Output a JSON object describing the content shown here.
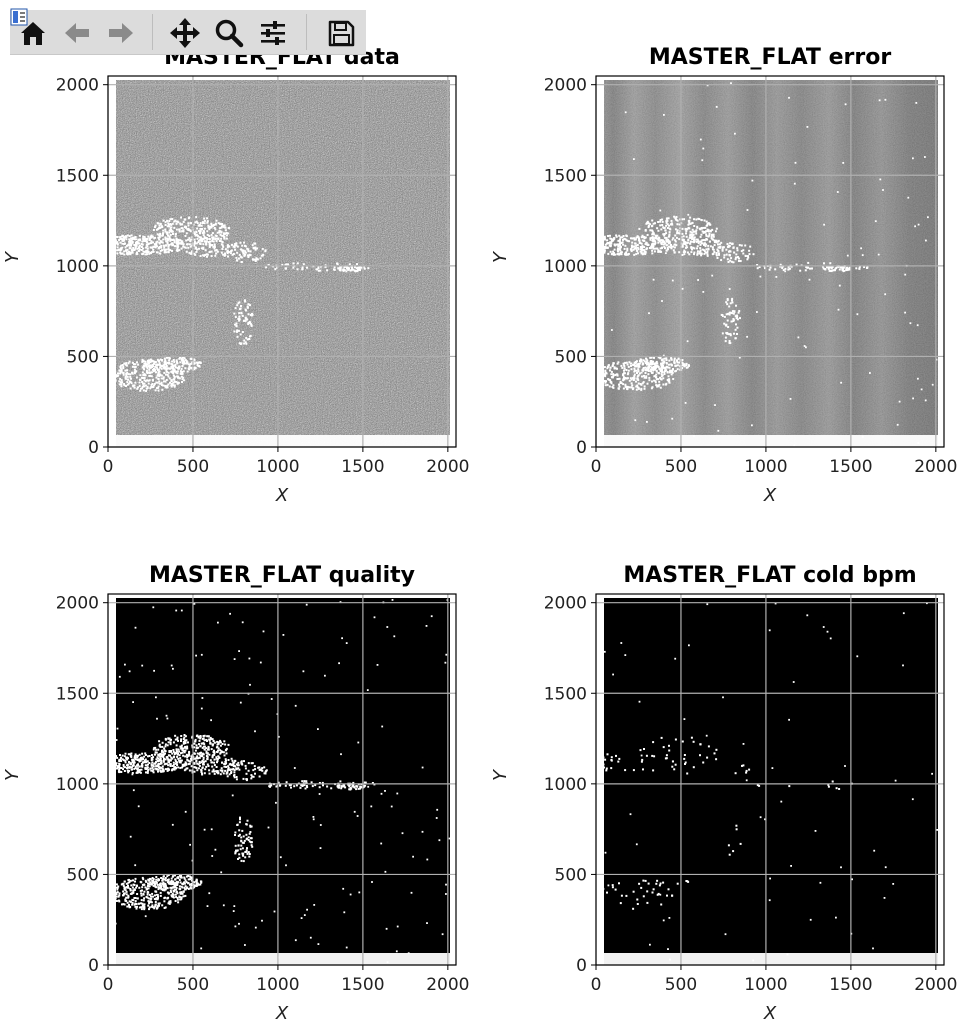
{
  "toolbar": {
    "buttons": [
      {
        "name": "home-button",
        "icon": "home-icon"
      },
      {
        "name": "back-button",
        "icon": "arrow-left-icon"
      },
      {
        "name": "forward-button",
        "icon": "arrow-right-icon"
      },
      {
        "name": "pan-button",
        "icon": "move-arrows-icon"
      },
      {
        "name": "zoom-button",
        "icon": "magnifier-icon"
      },
      {
        "name": "configure-subplots-button",
        "icon": "sliders-icon"
      },
      {
        "name": "save-button",
        "icon": "floppy-disk-icon"
      }
    ]
  },
  "panels": [
    {
      "id": "data",
      "title": "MASTER_FLAT data",
      "xlabel": "X",
      "ylabel": "Y",
      "style": "gray-noise"
    },
    {
      "id": "error",
      "title": "MASTER_FLAT error",
      "xlabel": "X",
      "ylabel": "Y",
      "style": "gray-banded"
    },
    {
      "id": "quality",
      "title": "MASTER_FLAT quality",
      "xlabel": "X",
      "ylabel": "Y",
      "style": "black-mask"
    },
    {
      "id": "cold",
      "title": "MASTER_FLAT cold bpm",
      "xlabel": "X",
      "ylabel": "Y",
      "style": "black-sparse"
    }
  ],
  "axis": {
    "x_ticks": [
      "0",
      "500",
      "1000",
      "1500",
      "2000"
    ],
    "y_ticks": [
      "0",
      "500",
      "1000",
      "1500",
      "2000"
    ]
  },
  "chart_data": [
    {
      "type": "heatmap",
      "title": "MASTER_FLAT data",
      "xlabel": "X",
      "ylabel": "Y",
      "xlim": [
        0,
        2048
      ],
      "ylim": [
        0,
        2048
      ],
      "colormap": "gray",
      "grid": true,
      "x_ticks": [
        0,
        500,
        1000,
        1500,
        2000
      ],
      "y_ticks": [
        0,
        500,
        1000,
        1500,
        2000
      ]
    },
    {
      "type": "heatmap",
      "title": "MASTER_FLAT error",
      "xlabel": "X",
      "ylabel": "Y",
      "xlim": [
        0,
        2048
      ],
      "ylim": [
        0,
        2048
      ],
      "colormap": "gray",
      "grid": true,
      "x_ticks": [
        0,
        500,
        1000,
        1500,
        2000
      ],
      "y_ticks": [
        0,
        500,
        1000,
        1500,
        2000
      ]
    },
    {
      "type": "heatmap",
      "title": "MASTER_FLAT quality",
      "xlabel": "X",
      "ylabel": "Y",
      "xlim": [
        0,
        2048
      ],
      "ylim": [
        0,
        2048
      ],
      "colormap": "gray",
      "grid": true,
      "x_ticks": [
        0,
        500,
        1000,
        1500,
        2000
      ],
      "y_ticks": [
        0,
        500,
        1000,
        1500,
        2000
      ]
    },
    {
      "type": "heatmap",
      "title": "MASTER_FLAT cold bpm",
      "xlabel": "X",
      "ylabel": "Y",
      "xlim": [
        0,
        2048
      ],
      "ylim": [
        0,
        2048
      ],
      "colormap": "gray",
      "grid": true,
      "x_ticks": [
        0,
        500,
        1000,
        1500,
        2000
      ],
      "y_ticks": [
        0,
        500,
        1000,
        1500,
        2000
      ]
    }
  ]
}
